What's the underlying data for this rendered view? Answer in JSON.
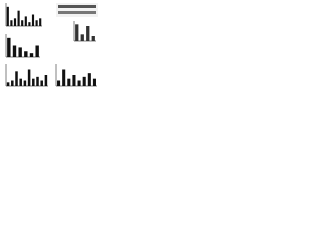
{
  "chart_data": [
    {
      "type": "bar",
      "color": "#111111",
      "ylim": [
        0,
        1.2
      ],
      "values": [
        1,
        0.3,
        0.4,
        0.8,
        0.3,
        0.5,
        0.2,
        0.6,
        0.3,
        0.4
      ]
    },
    {
      "type": "bar",
      "color": "#333333",
      "ylim": [
        0,
        1.2
      ],
      "values": [
        1,
        0.4,
        0.9,
        0.3
      ]
    },
    {
      "type": "bar",
      "color": "#111111",
      "ylim": [
        0,
        1.2
      ],
      "values": [
        1,
        0.6,
        0.5,
        0.3,
        0.2,
        0.6
      ]
    },
    {
      "type": "bar",
      "color": "#111111",
      "ylim": [
        0,
        1.2
      ],
      "values": [
        0.2,
        0.3,
        0.8,
        0.4,
        0.3,
        0.9,
        0.4,
        0.5,
        0.3,
        0.6
      ]
    },
    {
      "type": "bar",
      "color": "#111111",
      "ylim": [
        0,
        1.2
      ],
      "values": [
        0.3,
        0.9,
        0.4,
        0.6,
        0.3,
        0.5,
        0.7,
        0.4
      ]
    }
  ]
}
